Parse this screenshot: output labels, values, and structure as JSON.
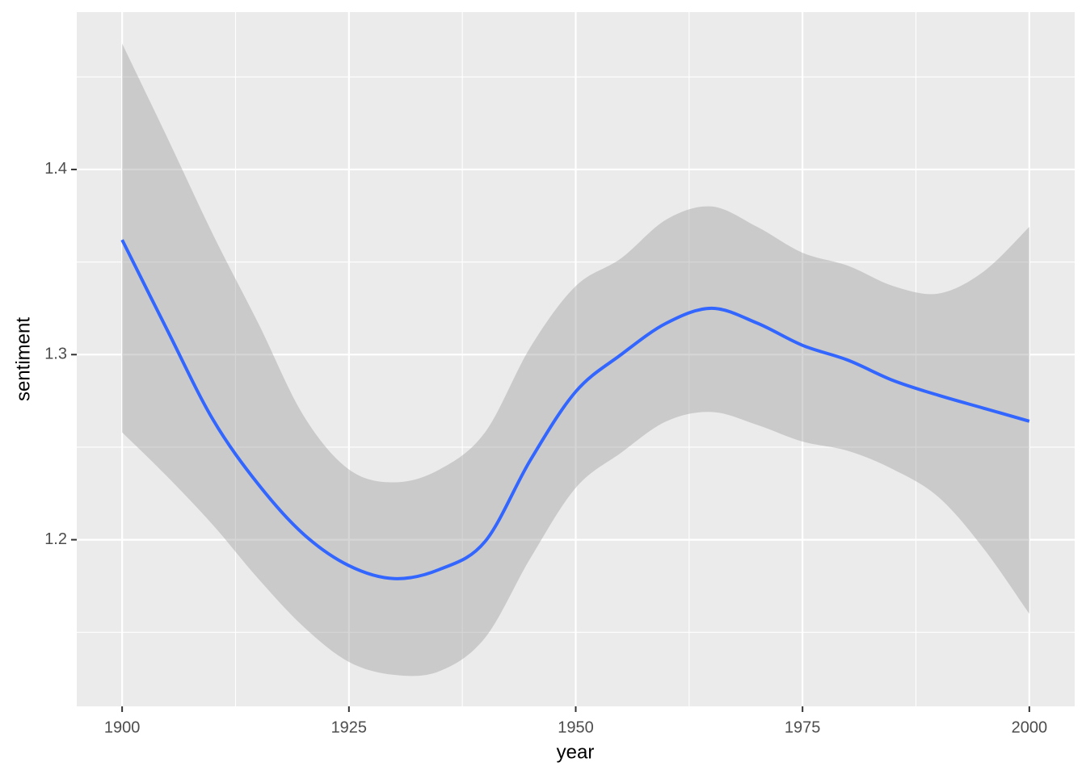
{
  "chart_data": {
    "type": "smooth",
    "x_label": "year",
    "y_label": "sentiment",
    "x": [
      1900,
      1905,
      1910,
      1915,
      1920,
      1925,
      1930,
      1935,
      1940,
      1945,
      1950,
      1955,
      1960,
      1965,
      1970,
      1975,
      1980,
      1985,
      1990,
      1995,
      2000
    ],
    "values": [
      1.362,
      1.313,
      1.265,
      1.23,
      1.203,
      1.186,
      1.179,
      1.184,
      1.199,
      1.243,
      1.28,
      1.3,
      1.317,
      1.325,
      1.317,
      1.305,
      1.297,
      1.286,
      1.278,
      1.271,
      1.264
    ],
    "ci_upper": [
      1.468,
      1.417,
      1.365,
      1.317,
      1.267,
      1.238,
      1.231,
      1.238,
      1.258,
      1.304,
      1.337,
      1.352,
      1.373,
      1.38,
      1.369,
      1.355,
      1.348,
      1.337,
      1.333,
      1.345,
      1.369
    ],
    "ci_lower": [
      1.258,
      1.234,
      1.208,
      1.179,
      1.153,
      1.134,
      1.127,
      1.129,
      1.147,
      1.19,
      1.228,
      1.247,
      1.264,
      1.269,
      1.262,
      1.253,
      1.248,
      1.238,
      1.223,
      1.195,
      1.16
    ],
    "color": "#3366ff",
    "band_color": "#999999",
    "xlim": [
      1895,
      2005
    ],
    "ylim": [
      1.11,
      1.485
    ],
    "xticks": [
      1900,
      1925,
      1950,
      1975,
      2000
    ],
    "yticks": [
      {
        "value": 1.2,
        "label": "1.2"
      },
      {
        "value": 1.3,
        "label": "1.3"
      },
      {
        "value": 1.4,
        "label": "1.4"
      }
    ],
    "x_minor_grid": [
      1912.5,
      1937.5,
      1962.5,
      1987.5
    ],
    "y_minor_grid": [
      1.15,
      1.25,
      1.35,
      1.45
    ],
    "grid": true
  }
}
